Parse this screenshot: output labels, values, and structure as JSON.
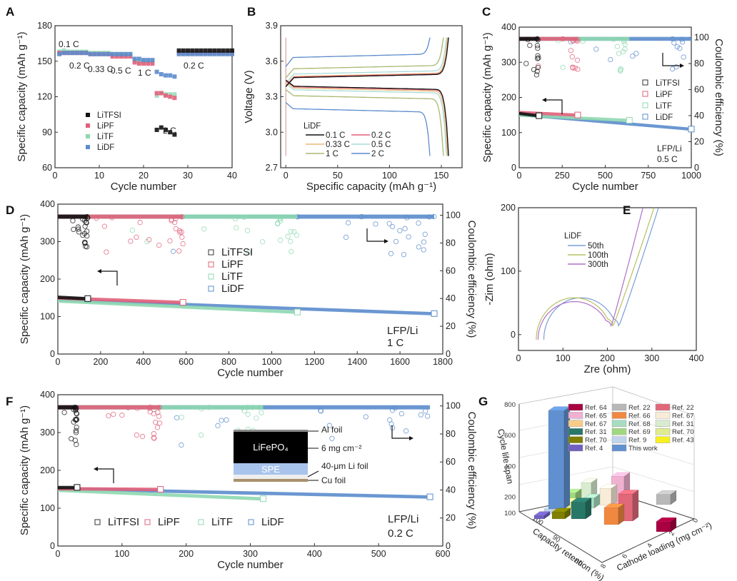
{
  "figure": {
    "panels": [
      "A",
      "B",
      "C",
      "D",
      "E",
      "F",
      "G"
    ]
  },
  "colors": {
    "LiTFSI": "#111111",
    "LiPF": "#e0607a",
    "LiTF": "#8ed8b0",
    "LiDF": "#5b8ccc"
  },
  "chart_data": [
    {
      "panel": "A",
      "type": "scatter",
      "title": "",
      "xlabel": "Cycle number",
      "ylabel": "Specific capacity (mAh g⁻¹)",
      "xlim": [
        0,
        40
      ],
      "ylim": [
        60,
        180
      ],
      "xticks": [
        0,
        10,
        20,
        30,
        40
      ],
      "yticks": [
        60,
        90,
        120,
        150,
        180
      ],
      "legend": [
        "LiTFSI",
        "LiPF",
        "LiTF",
        "LiDF"
      ],
      "legend_position": "lower-left",
      "rate_labels": [
        "0.1 C",
        "0.2 C",
        "0.33 C",
        "0.5 C",
        "1 C",
        "2 C",
        "0.2 C"
      ],
      "series": [
        {
          "name": "LiTFSI",
          "x": [
            23,
            24,
            25,
            26,
            27,
            28,
            29,
            30,
            31,
            32,
            33,
            34,
            35,
            36,
            37,
            38,
            39,
            40
          ],
          "y": [
            92,
            94,
            92,
            90,
            88,
            159,
            159,
            159,
            159,
            159,
            159,
            159,
            159,
            159,
            159,
            159,
            159,
            159
          ]
        },
        {
          "name": "LiPF",
          "x": [
            1,
            2,
            3,
            4,
            5,
            6,
            7,
            8,
            9,
            10,
            11,
            12,
            13,
            14,
            15,
            16,
            17,
            18,
            19,
            20,
            21,
            22,
            23,
            24,
            25,
            26,
            27,
            28,
            29,
            30,
            31,
            32,
            33,
            34,
            35,
            36,
            37,
            38,
            39,
            40
          ],
          "y": [
            157,
            157,
            157,
            157,
            157,
            157,
            157,
            156,
            156,
            156,
            156,
            156,
            154,
            154,
            154,
            154,
            154,
            149,
            148,
            148,
            148,
            148,
            123,
            123,
            121,
            120,
            119,
            157,
            157,
            157,
            157,
            157,
            157,
            157,
            157,
            157,
            157,
            157,
            157,
            157
          ]
        },
        {
          "name": "LiTF",
          "x": [
            1,
            2,
            3,
            4,
            5,
            6,
            7,
            8,
            9,
            10,
            11,
            12,
            13,
            14,
            15,
            16,
            17,
            18,
            19,
            20,
            21,
            22,
            23,
            24,
            25,
            26,
            27,
            28,
            29,
            30,
            31,
            32,
            33,
            34,
            35,
            36,
            37,
            38,
            39,
            40
          ],
          "y": [
            158,
            159,
            158,
            158,
            158,
            158,
            158,
            157,
            157,
            157,
            157,
            157,
            156,
            156,
            156,
            156,
            156,
            151,
            150,
            150,
            150,
            150,
            121,
            123,
            122,
            122,
            122,
            157,
            157,
            157,
            157,
            157,
            157,
            157,
            157,
            157,
            157,
            157,
            157,
            157
          ]
        },
        {
          "name": "LiDF",
          "x": [
            1,
            2,
            3,
            4,
            5,
            6,
            7,
            8,
            9,
            10,
            11,
            12,
            13,
            14,
            15,
            16,
            17,
            18,
            19,
            20,
            21,
            22,
            23,
            24,
            25,
            26,
            27,
            28,
            29,
            30,
            31,
            32,
            33,
            34,
            35,
            36,
            37,
            38,
            39,
            40
          ],
          "y": [
            156,
            157,
            157,
            157,
            157,
            157,
            157,
            156,
            156,
            156,
            156,
            156,
            156,
            156,
            156,
            156,
            156,
            152,
            152,
            151,
            151,
            151,
            141,
            139,
            138,
            138,
            137,
            156,
            156,
            156,
            156,
            156,
            156,
            156,
            156,
            156,
            156,
            156,
            156,
            156
          ]
        }
      ]
    },
    {
      "panel": "B",
      "type": "line",
      "xlabel": "Specific capacity (mAh g⁻¹)",
      "ylabel": "Voltage (V)",
      "xlim": [
        -5,
        170
      ],
      "ylim": [
        2.7,
        3.9
      ],
      "xticks": [
        0,
        50,
        100,
        150
      ],
      "yticks": [
        2.7,
        3.0,
        3.3,
        3.6,
        3.9
      ],
      "legend_title": "LiDF",
      "legend_position": "lower-left",
      "series": [
        {
          "name": "0.1 C",
          "color": "#111111",
          "capacity": 157,
          "charge_plateau": 3.46,
          "discharge_plateau": 3.39
        },
        {
          "name": "0.2 C",
          "color": "#e0607a",
          "capacity": 157,
          "charge_plateau": 3.465,
          "discharge_plateau": 3.385
        },
        {
          "name": "0.33 C",
          "color": "#e8b878",
          "capacity": 156,
          "charge_plateau": 3.47,
          "discharge_plateau": 3.375
        },
        {
          "name": "0.5 C",
          "color": "#a8dcd8",
          "capacity": 155,
          "charge_plateau": 3.49,
          "discharge_plateau": 3.36
        },
        {
          "name": "1 C",
          "color": "#a8b870",
          "capacity": 152,
          "charge_plateau": 3.535,
          "discharge_plateau": 3.31
        },
        {
          "name": "2 C",
          "color": "#5b8ccc",
          "capacity": 139,
          "charge_plateau": 3.63,
          "discharge_plateau": 3.2
        }
      ]
    },
    {
      "panel": "C",
      "type": "scatter",
      "xlabel": "Cycle number",
      "ylabel": "Specific capacity (mAh g⁻¹)",
      "y2label": "Coulombic efficiency (%)",
      "xlim": [
        0,
        1000
      ],
      "ylim": [
        0,
        400
      ],
      "y2lim": [
        0,
        108
      ],
      "xticks": [
        0,
        250,
        500,
        750,
        1000
      ],
      "yticks": [
        0,
        100,
        200,
        300,
        400
      ],
      "y2ticks": [
        0,
        20,
        40,
        60,
        80,
        100
      ],
      "legend": [
        "LiTFSI",
        "LiPF",
        "LiTF",
        "LiDF"
      ],
      "legend_position": "right",
      "annotation": [
        "LFP/Li",
        "0.5 C"
      ],
      "series": [
        {
          "name": "LiTFSI",
          "end_cycle": 115,
          "capacity_start": 155,
          "capacity_end": 148,
          "ce": 99
        },
        {
          "name": "LiPF",
          "end_cycle": 340,
          "capacity_start": 158,
          "capacity_end": 150,
          "ce": 99
        },
        {
          "name": "LiTF",
          "end_cycle": 640,
          "capacity_start": 150,
          "capacity_end": 135,
          "ce": 99
        },
        {
          "name": "LiDF",
          "end_cycle": 1000,
          "capacity_start": 152,
          "capacity_end": 110,
          "ce": 99
        }
      ]
    },
    {
      "panel": "D",
      "type": "scatter",
      "xlabel": "Cycle number",
      "ylabel": "Specific capacity (mAh g⁻¹)",
      "y2label": "Coulombic efficiency (%)",
      "xlim": [
        0,
        1800
      ],
      "ylim": [
        0,
        400
      ],
      "y2lim": [
        0,
        108
      ],
      "xticks": [
        0,
        200,
        400,
        600,
        800,
        1000,
        1200,
        1400,
        1600,
        1800
      ],
      "yticks": [
        0,
        100,
        200,
        300,
        400
      ],
      "y2ticks": [
        0,
        20,
        40,
        60,
        80,
        100
      ],
      "legend": [
        "LiTFSI",
        "LiPF",
        "LiTF",
        "LiDF"
      ],
      "legend_position": "center",
      "annotation": [
        "LFP/Li",
        "1 C"
      ],
      "series": [
        {
          "name": "LiTFSI",
          "end_cycle": 140,
          "capacity_start": 152,
          "capacity_end": 148,
          "ce": 99
        },
        {
          "name": "LiPF",
          "end_cycle": 585,
          "capacity_start": 150,
          "capacity_end": 138,
          "ce": 99
        },
        {
          "name": "LiTF",
          "end_cycle": 1120,
          "capacity_start": 142,
          "capacity_end": 112,
          "ce": 99
        },
        {
          "name": "LiDF",
          "end_cycle": 1760,
          "capacity_start": 145,
          "capacity_end": 108,
          "ce": 99
        }
      ]
    },
    {
      "panel": "E",
      "type": "line",
      "xlabel": "Zre (ohm)",
      "ylabel": "-Zim (ohm)",
      "xlim": [
        0,
        400
      ],
      "ylim": [
        -25,
        200
      ],
      "xticks": [
        0,
        100,
        200,
        300,
        400
      ],
      "yticks": [
        0,
        100,
        200
      ],
      "legend_title": "LiDF",
      "legend_position": "upper-left",
      "series": [
        {
          "name": "50th",
          "color": "#7a9ed8",
          "r_start": 57,
          "r_min": 225,
          "arc_peak": 58,
          "tail_end_x": 315
        },
        {
          "name": "100th",
          "color": "#b8c060",
          "r_start": 40,
          "r_min": 212,
          "arc_peak": 58,
          "tail_end_x": 305
        },
        {
          "name": "300th",
          "color": "#b070c8",
          "r_start": 44,
          "r_min": 208,
          "arc_peak": 52,
          "tail_end_x": 280
        }
      ]
    },
    {
      "panel": "F",
      "type": "scatter",
      "xlabel": "Cycle number",
      "ylabel": "Specific capacity (mAh g⁻¹)",
      "y2label": "Coulombic efficiency (%)",
      "xlim": [
        0,
        600
      ],
      "ylim": [
        0,
        400
      ],
      "y2lim": [
        0,
        108
      ],
      "xticks": [
        0,
        100,
        200,
        300,
        400,
        500,
        600
      ],
      "yticks": [
        0,
        100,
        200,
        300,
        400
      ],
      "y2ticks": [
        0,
        20,
        40,
        60,
        80,
        100
      ],
      "legend": [
        "LiTFSI",
        "LiPF",
        "LiTF",
        "LiDF"
      ],
      "legend_position": "bottom",
      "annotation": [
        "LFP/Li",
        "0.2 C"
      ],
      "inset": {
        "layers": [
          "LiFePO₄",
          "SPE"
        ],
        "labels": [
          "Al foil",
          "6 mg cm⁻²",
          "40-μm Li foil",
          "Cu foil"
        ]
      },
      "series": [
        {
          "name": "LiTFSI",
          "end_cycle": 30,
          "capacity_start": 155,
          "capacity_end": 155,
          "ce": 99
        },
        {
          "name": "LiPF",
          "end_cycle": 160,
          "capacity_start": 152,
          "capacity_end": 150,
          "ce": 99
        },
        {
          "name": "LiTF",
          "end_cycle": 320,
          "capacity_start": 148,
          "capacity_end": 125,
          "ce": 99
        },
        {
          "name": "LiDF",
          "end_cycle": 580,
          "capacity_start": 152,
          "capacity_end": 130,
          "ce": 99
        }
      ]
    },
    {
      "panel": "G",
      "type": "bar",
      "subtype": "3d-bar",
      "xlabel": "Capacity retention (%)",
      "ylabel": "Cathode loading (mg cm⁻²)",
      "zlabel": "Cycle life span",
      "xticks": [
        100,
        90,
        80
      ],
      "yticks": [
        0,
        2,
        4,
        6,
        8
      ],
      "zticks": [
        200,
        400,
        600,
        800
      ],
      "legend_position": "top",
      "series": [
        {
          "name": "Ref. 64",
          "color": "#a80040",
          "cycles": 60
        },
        {
          "name": "Ref. 22",
          "color": "#b8b8b8",
          "cycles": 60
        },
        {
          "name": "Ref. 22",
          "color": "#e06878",
          "cycles": 160
        },
        {
          "name": "Ref. 65",
          "color": "#f0b0d0",
          "cycles": 200
        },
        {
          "name": "Ref. 66",
          "color": "#f08840",
          "cycles": 100
        },
        {
          "name": "Ref. 67",
          "color": "#f8ecd8",
          "cycles": 100
        },
        {
          "name": "Ref. 67",
          "color": "#f8cc88",
          "cycles": 50
        },
        {
          "name": "Ref. 68",
          "color": "#a8dcc0",
          "cycles": 60
        },
        {
          "name": "Ref. 31",
          "color": "#d8ecd0",
          "cycles": 100
        },
        {
          "name": "Ref. 31",
          "color": "#287868",
          "cycles": 100
        },
        {
          "name": "Ref. 69",
          "color": "#a0d880",
          "cycles": 60
        },
        {
          "name": "Ref. 70",
          "color": "#e0ec90",
          "cycles": 40
        },
        {
          "name": "Ref. 70",
          "color": "#808000",
          "cycles": 40
        },
        {
          "name": "Ref. 9",
          "color": "#c0d4ec",
          "cycles": 30
        },
        {
          "name": "Ref. 43",
          "color": "#f8f020",
          "cycles": 20
        },
        {
          "name": "Ref. 4",
          "color": "#7060c0",
          "cycles": 20
        },
        {
          "name": "This work",
          "color": "#6090d0",
          "cycles": 580
        }
      ]
    }
  ]
}
